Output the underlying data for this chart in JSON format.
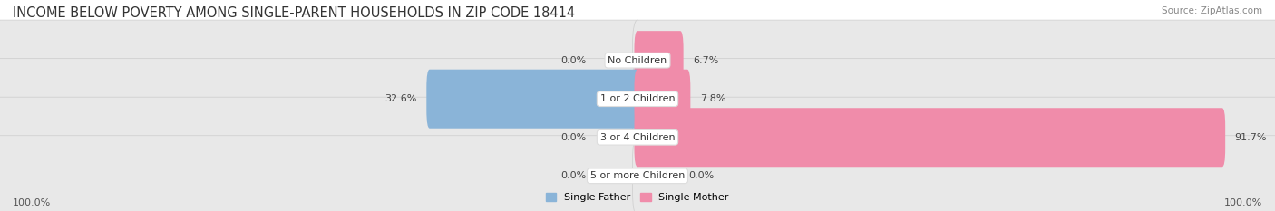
{
  "title": "INCOME BELOW POVERTY AMONG SINGLE-PARENT HOUSEHOLDS IN ZIP CODE 18414",
  "source": "Source: ZipAtlas.com",
  "categories": [
    "No Children",
    "1 or 2 Children",
    "3 or 4 Children",
    "5 or more Children"
  ],
  "father_values": [
    0.0,
    32.6,
    0.0,
    0.0
  ],
  "mother_values": [
    6.7,
    7.8,
    91.7,
    0.0
  ],
  "father_color": "#8ab4d8",
  "mother_color": "#f08caa",
  "bar_bg_color": "#e8e8e8",
  "row_bg_color": "#f0f0f0",
  "label_bg_color": "#ffffff",
  "father_label": "Single Father",
  "mother_label": "Single Mother",
  "axis_max": 100.0,
  "left_axis_label": "100.0%",
  "right_axis_label": "100.0%",
  "background_color": "#ffffff",
  "title_fontsize": 10.5,
  "cat_fontsize": 8,
  "val_fontsize": 8,
  "source_fontsize": 7.5,
  "legend_fontsize": 8
}
